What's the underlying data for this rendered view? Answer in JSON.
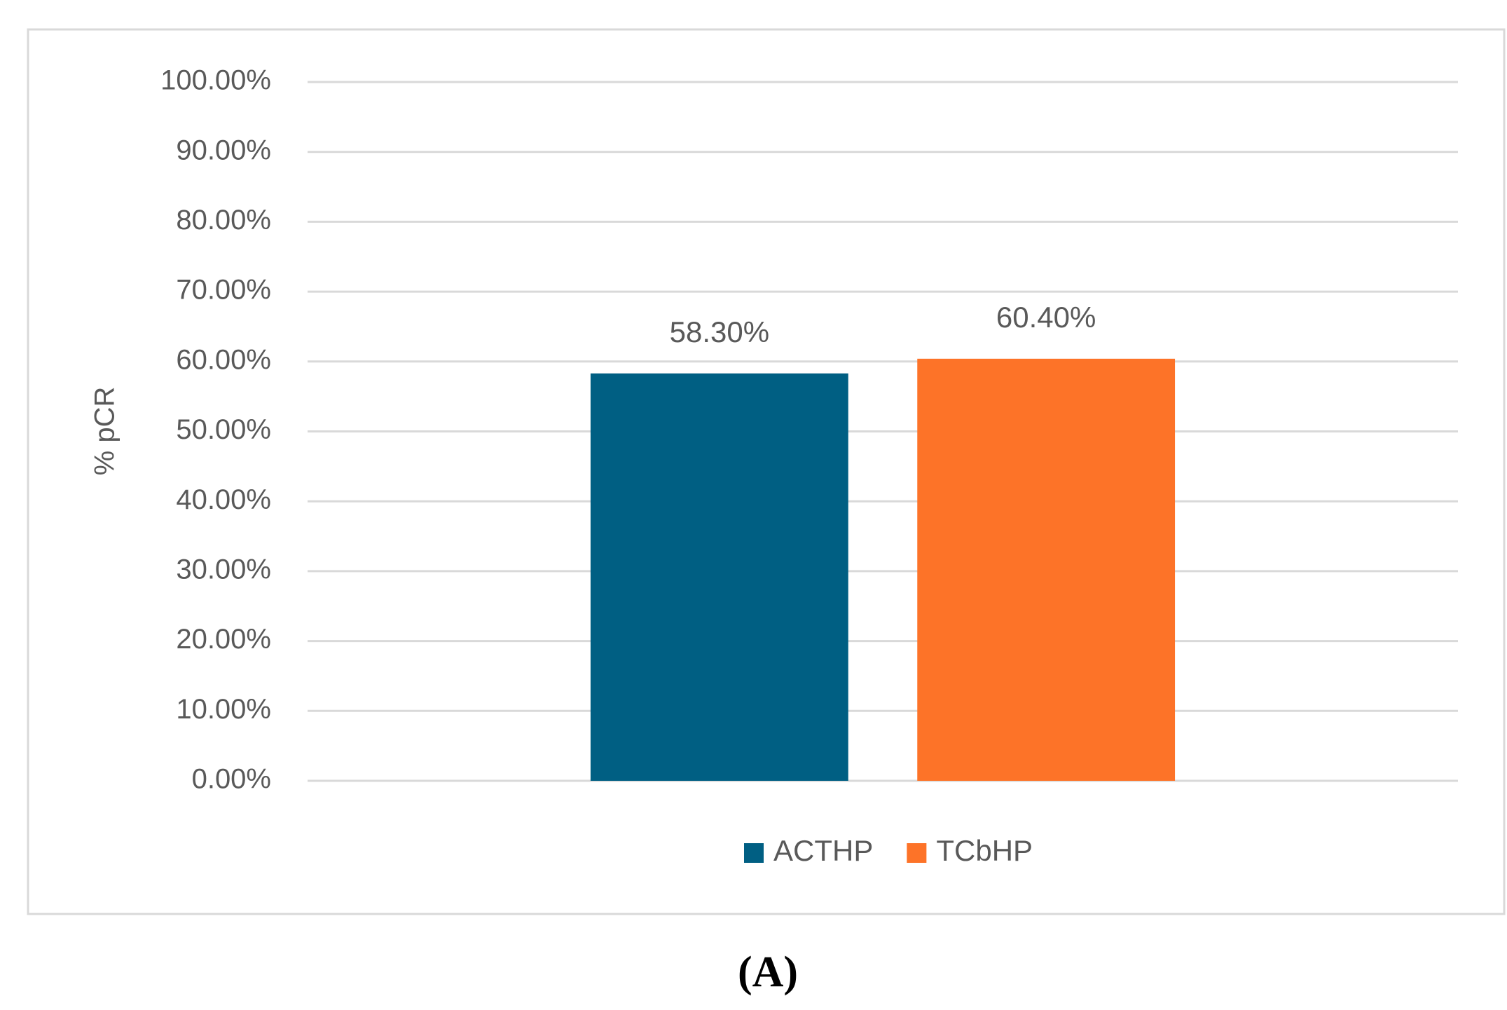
{
  "chart_data": {
    "type": "bar",
    "ylabel": "% pCR",
    "caption": "(A)",
    "categories": [
      null
    ],
    "series": [
      {
        "name": "ACTHP",
        "color": "#005f83",
        "values": [
          58.3
        ],
        "value_labels": [
          "58.30%"
        ]
      },
      {
        "name": "TCbHP",
        "color": "#fd7328",
        "values": [
          60.4
        ],
        "value_labels": [
          "60.40%"
        ]
      }
    ],
    "ylim": [
      0,
      100
    ],
    "yticks": [
      {
        "value": 0,
        "label": "0.00%"
      },
      {
        "value": 10,
        "label": "10.00%"
      },
      {
        "value": 20,
        "label": "20.00%"
      },
      {
        "value": 30,
        "label": "30.00%"
      },
      {
        "value": 40,
        "label": "40.00%"
      },
      {
        "value": 50,
        "label": "50.00%"
      },
      {
        "value": 60,
        "label": "60.00%"
      },
      {
        "value": 70,
        "label": "70.00%"
      },
      {
        "value": 80,
        "label": "80.00%"
      },
      {
        "value": 90,
        "label": "90.00%"
      },
      {
        "value": 100,
        "label": "100.00%"
      }
    ],
    "grid": true,
    "legend": "bottom"
  }
}
